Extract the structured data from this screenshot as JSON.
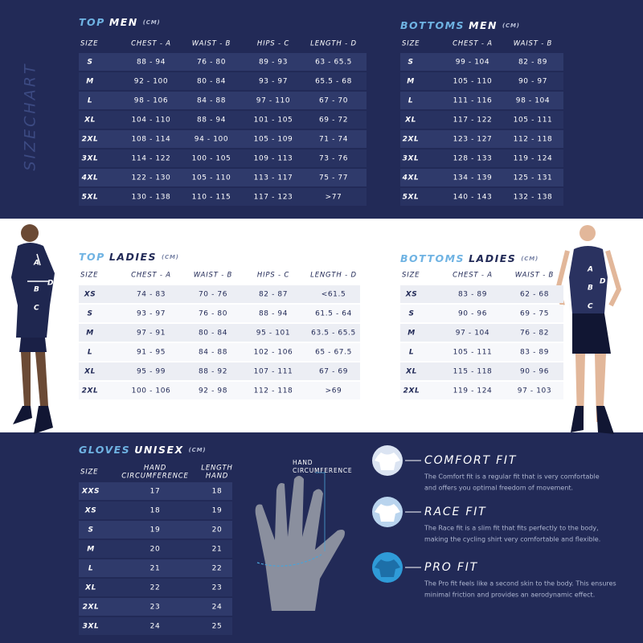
{
  "side_label": "SIZECHART",
  "top_men": {
    "title_a": "TOP",
    "title_b": "MEN",
    "unit": "(CM)",
    "headers": [
      "SIZE",
      "CHEST - A",
      "WAIST - B",
      "HIPS - C",
      "LENGTH - D"
    ],
    "rows": [
      [
        "S",
        "88 - 94",
        "76 - 80",
        "89 - 93",
        "63 - 65.5"
      ],
      [
        "M",
        "92 - 100",
        "80 - 84",
        "93 - 97",
        "65.5 - 68"
      ],
      [
        "L",
        "98 - 106",
        "84 - 88",
        "97 - 110",
        "67 - 70"
      ],
      [
        "XL",
        "104 - 110",
        "88 - 94",
        "101 - 105",
        "69 - 72"
      ],
      [
        "2XL",
        "108 - 114",
        "94 - 100",
        "105 - 109",
        "71 - 74"
      ],
      [
        "3XL",
        "114 - 122",
        "100 - 105",
        "109 - 113",
        "73 - 76"
      ],
      [
        "4XL",
        "122 - 130",
        "105 - 110",
        "113 - 117",
        "75 - 77"
      ],
      [
        "5XL",
        "130 - 138",
        "110 - 115",
        "117 - 123",
        ">77"
      ]
    ]
  },
  "bottoms_men": {
    "title_a": "BOTTOMS",
    "title_b": "MEN",
    "unit": "(CM)",
    "headers": [
      "SIZE",
      "CHEST - A",
      "WAIST - B"
    ],
    "rows": [
      [
        "S",
        "99 - 104",
        "82 - 89"
      ],
      [
        "M",
        "105 - 110",
        "90 - 97"
      ],
      [
        "L",
        "111 - 116",
        "98 - 104"
      ],
      [
        "XL",
        "117 - 122",
        "105 - 111"
      ],
      [
        "2XL",
        "123 - 127",
        "112 - 118"
      ],
      [
        "3XL",
        "128 - 133",
        "119 - 124"
      ],
      [
        "4XL",
        "134 - 139",
        "125 - 131"
      ],
      [
        "5XL",
        "140 - 143",
        "132 - 138"
      ]
    ]
  },
  "top_ladies": {
    "title_a": "TOP",
    "title_b": "LADIES",
    "unit": "(CM)",
    "headers": [
      "SIZE",
      "CHEST - A",
      "WAIST - B",
      "HIPS - C",
      "LENGTH - D"
    ],
    "rows": [
      [
        "XS",
        "74 - 83",
        "70 - 76",
        "82 - 87",
        "<61.5"
      ],
      [
        "S",
        "93 - 97",
        "76 - 80",
        "88 - 94",
        "61.5 - 64"
      ],
      [
        "M",
        "97 - 91",
        "80 - 84",
        "95 - 101",
        "63.5 - 65.5"
      ],
      [
        "L",
        "91 - 95",
        "84 - 88",
        "102 - 106",
        "65 - 67.5"
      ],
      [
        "XL",
        "95 - 99",
        "88 - 92",
        "107 - 111",
        "67 - 69"
      ],
      [
        "2XL",
        "100 - 106",
        "92 - 98",
        "112 - 118",
        ">69"
      ]
    ]
  },
  "bottoms_ladies": {
    "title_a": "BOTTOMS",
    "title_b": "LADIES",
    "unit": "(CM)",
    "headers": [
      "SIZE",
      "CHEST - A",
      "WAIST - B"
    ],
    "rows": [
      [
        "XS",
        "83 - 89",
        "62 - 68"
      ],
      [
        "S",
        "90 - 96",
        "69 - 75"
      ],
      [
        "M",
        "97 - 104",
        "76 - 82"
      ],
      [
        "L",
        "105 - 111",
        "83 - 89"
      ],
      [
        "XL",
        "115 - 118",
        "90 - 96"
      ],
      [
        "2XL",
        "119 - 124",
        "97 - 103"
      ]
    ]
  },
  "gloves": {
    "title_a": "GLOVES",
    "title_b": "UNISEX",
    "unit": "(CM)",
    "headers": [
      [
        "SIZE"
      ],
      [
        "HAND",
        "CIRCUMFERENCE"
      ],
      [
        "LENGTH",
        "HAND"
      ]
    ],
    "rows": [
      [
        "XXS",
        "17",
        "18"
      ],
      [
        "XS",
        "18",
        "19"
      ],
      [
        "S",
        "19",
        "20"
      ],
      [
        "M",
        "20",
        "21"
      ],
      [
        "L",
        "21",
        "22"
      ],
      [
        "XL",
        "22",
        "23"
      ],
      [
        "2XL",
        "23",
        "24"
      ],
      [
        "3XL",
        "24",
        "25"
      ]
    ]
  },
  "hand_label": [
    "HAND",
    "CIRCUMFERENCE"
  ],
  "figure_labels": [
    "A",
    "B",
    "C",
    "D"
  ],
  "fits": [
    {
      "title": "COMFORT FIT",
      "text": [
        "The Comfort fit is a regular fit that is very comfortable",
        "and offers you optimal freedom of movement."
      ]
    },
    {
      "title": "RACE FIT",
      "text": [
        "The Race fit is a slim fit that fits perfectly to the body,",
        "making the cycling shirt very comfortable and flexible."
      ]
    },
    {
      "title": "PRO FIT",
      "text": [
        "The Pro fit feels like a second skin to the body. This ensures",
        "minimal friction and provides an aerodynamic effect."
      ]
    }
  ]
}
